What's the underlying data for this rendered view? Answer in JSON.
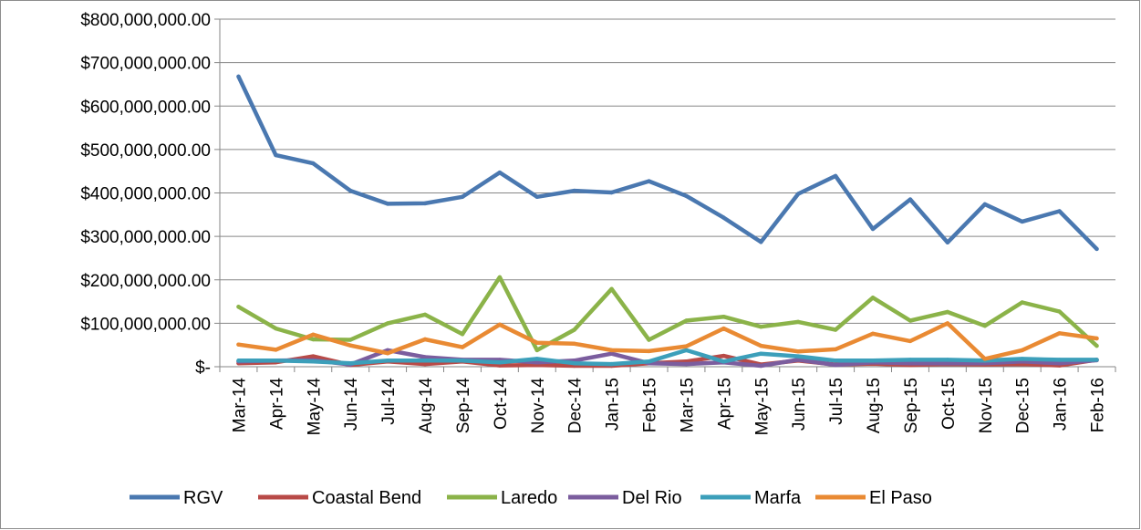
{
  "chart_data": {
    "type": "line",
    "title": "",
    "xlabel": "",
    "ylabel": "",
    "ylim": [
      0,
      800000000
    ],
    "y_ticks": [
      0,
      100000000,
      200000000,
      300000000,
      400000000,
      500000000,
      600000000,
      700000000,
      800000000
    ],
    "y_tick_labels": [
      "$-",
      "$100,000,000.00",
      "$200,000,000.00",
      "$300,000,000.00",
      "$400,000,000.00",
      "$500,000,000.00",
      "$600,000,000.00",
      "$700,000,000.00",
      "$800,000,000.00"
    ],
    "categories": [
      "Mar-14",
      "Apr-14",
      "May-14",
      "Jun-14",
      "Jul-14",
      "Aug-14",
      "Sep-14",
      "Oct-14",
      "Nov-14",
      "Dec-14",
      "Jan-15",
      "Feb-15",
      "Mar-15",
      "Apr-15",
      "May-15",
      "Jun-15",
      "Jul-15",
      "Aug-15",
      "Sep-15",
      "Oct-15",
      "Nov-15",
      "Dec-15",
      "Jan-16",
      "Feb-16"
    ],
    "grid": true,
    "legend_position": "bottom",
    "series": [
      {
        "name": "RGV",
        "color": "#4a78b0",
        "values": [
          668000000,
          487000000,
          468000000,
          405000000,
          375000000,
          376000000,
          391000000,
          447000000,
          391000000,
          405000000,
          401000000,
          427000000,
          393000000,
          343000000,
          287000000,
          398000000,
          439000000,
          317000000,
          385000000,
          286000000,
          374000000,
          334000000,
          358000000,
          271000000
        ]
      },
      {
        "name": "Coastal Bend",
        "color": "#b84a47",
        "values": [
          8000000,
          10000000,
          24000000,
          4000000,
          12000000,
          6000000,
          12000000,
          3000000,
          4000000,
          2000000,
          2000000,
          8000000,
          12000000,
          25000000,
          5000000,
          14000000,
          5000000,
          7000000,
          4000000,
          6000000,
          5000000,
          6000000,
          3000000,
          16000000
        ]
      },
      {
        "name": "Laredo",
        "color": "#8bb349",
        "values": [
          138000000,
          88000000,
          63000000,
          62000000,
          100000000,
          120000000,
          75000000,
          206000000,
          38000000,
          85000000,
          179000000,
          62000000,
          106000000,
          115000000,
          92000000,
          103000000,
          85000000,
          159000000,
          106000000,
          126000000,
          94000000,
          148000000,
          127000000,
          48000000
        ]
      },
      {
        "name": "Del Rio",
        "color": "#7b5d9e",
        "values": [
          12000000,
          14000000,
          15000000,
          5000000,
          38000000,
          22000000,
          16000000,
          16000000,
          10000000,
          14000000,
          30000000,
          8000000,
          6000000,
          10000000,
          2000000,
          16000000,
          4000000,
          10000000,
          8000000,
          8000000,
          8000000,
          12000000,
          8000000,
          15000000
        ]
      },
      {
        "name": "Marfa",
        "color": "#3c9fba",
        "values": [
          14000000,
          14000000,
          12000000,
          8000000,
          14000000,
          14000000,
          14000000,
          10000000,
          18000000,
          8000000,
          6000000,
          12000000,
          38000000,
          12000000,
          30000000,
          24000000,
          14000000,
          14000000,
          16000000,
          16000000,
          14000000,
          18000000,
          16000000,
          16000000
        ]
      },
      {
        "name": "El Paso",
        "color": "#e98a33",
        "values": [
          51000000,
          39000000,
          74000000,
          49000000,
          31000000,
          63000000,
          45000000,
          97000000,
          55000000,
          53000000,
          38000000,
          36000000,
          47000000,
          88000000,
          48000000,
          35000000,
          40000000,
          76000000,
          59000000,
          100000000,
          18000000,
          38000000,
          77000000,
          65000000
        ]
      }
    ]
  }
}
